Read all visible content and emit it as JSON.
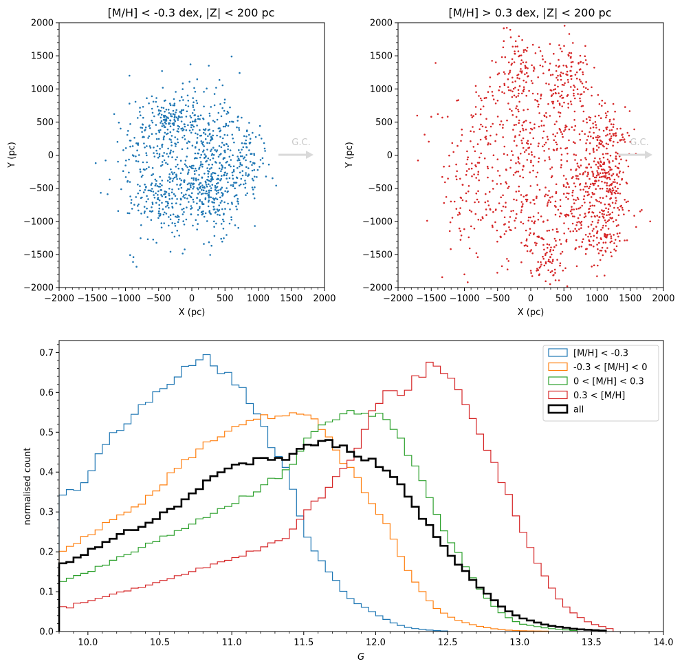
{
  "colors": {
    "metal_poor": "#1f77b4",
    "slightly_poor": "#ff7f0e",
    "slightly_rich": "#2ca02c",
    "metal_rich": "#d62728",
    "all": "#000000",
    "gc_arrow": "#d9d9d9"
  },
  "chart_data": [
    {
      "type": "scatter",
      "title": "[M/H] < -0.3 dex, |Z| < 200 pc",
      "xlabel": "X (pc)",
      "ylabel": "Y (pc)",
      "xlim": [
        -2000,
        2000
      ],
      "ylim": [
        -2000,
        2000
      ],
      "xticks": [
        "−2000",
        "−1500",
        "−1000",
        "−500",
        "0",
        "500",
        "1000",
        "1500",
        "2000"
      ],
      "yticks": [
        "−2000",
        "−1500",
        "−1000",
        "−500",
        "0",
        "500",
        "1000",
        "1500",
        "2000"
      ],
      "annotation": "G.C.",
      "color_key": "metal_poor",
      "clusters": [
        {
          "cx": -250,
          "cy": 550,
          "sx": 230,
          "sy": 220,
          "n": 160
        },
        {
          "cx": 300,
          "cy": 450,
          "sx": 200,
          "sy": 280,
          "n": 110
        },
        {
          "cx": -550,
          "cy": 250,
          "sx": 250,
          "sy": 280,
          "n": 90
        },
        {
          "cx": 50,
          "cy": -300,
          "sx": 300,
          "sy": 260,
          "n": 170
        },
        {
          "cx": 500,
          "cy": -250,
          "sx": 250,
          "sy": 230,
          "n": 130
        },
        {
          "cx": -350,
          "cy": -700,
          "sx": 280,
          "sy": 260,
          "n": 140
        },
        {
          "cx": 350,
          "cy": -800,
          "sx": 250,
          "sy": 250,
          "n": 100
        },
        {
          "cx": -750,
          "cy": -300,
          "sx": 200,
          "sy": 450,
          "n": 70
        },
        {
          "cx": 850,
          "cy": 0,
          "sx": 130,
          "sy": 250,
          "n": 60
        }
      ],
      "extra_points": [
        [
          -1300,
          -80
        ],
        [
          -1170,
          620
        ],
        [
          -940,
          1200
        ],
        [
          -880,
          -1540
        ],
        [
          -930,
          -1510
        ],
        [
          600,
          1490
        ],
        [
          720,
          1240
        ],
        [
          950,
          -1070
        ],
        [
          1050,
          250
        ],
        [
          -20,
          1370
        ],
        [
          -1120,
          200
        ]
      ],
      "seed": 7
    },
    {
      "type": "scatter",
      "title": "[M/H] > 0.3 dex, |Z| < 200 pc",
      "xlabel": "X (pc)",
      "ylabel": "Y (pc)",
      "xlim": [
        -2000,
        2000
      ],
      "ylim": [
        -2000,
        2000
      ],
      "xticks": [
        "−2000",
        "−1500",
        "−1000",
        "−500",
        "0",
        "500",
        "1000",
        "1500",
        "2000"
      ],
      "yticks": [
        "−2000",
        "−1500",
        "−1000",
        "−500",
        "0",
        "500",
        "1000",
        "1500",
        "2000"
      ],
      "annotation": "G.C.",
      "color_key": "metal_rich",
      "clusters": [
        {
          "cx": -250,
          "cy": 1300,
          "sx": 230,
          "sy": 280,
          "n": 110
        },
        {
          "cx": 550,
          "cy": 1150,
          "sx": 220,
          "sy": 300,
          "n": 110
        },
        {
          "cx": 200,
          "cy": 400,
          "sx": 350,
          "sy": 400,
          "n": 150
        },
        {
          "cx": -550,
          "cy": 200,
          "sx": 380,
          "sy": 450,
          "n": 120
        },
        {
          "cx": 1150,
          "cy": 100,
          "sx": 170,
          "sy": 350,
          "n": 180
        },
        {
          "cx": 1150,
          "cy": -550,
          "sx": 180,
          "sy": 350,
          "n": 140
        },
        {
          "cx": 700,
          "cy": -700,
          "sx": 300,
          "sy": 400,
          "n": 160
        },
        {
          "cx": -100,
          "cy": -900,
          "sx": 350,
          "sy": 400,
          "n": 130
        },
        {
          "cx": 1100,
          "cy": -1300,
          "sx": 200,
          "sy": 200,
          "n": 80
        },
        {
          "cx": -900,
          "cy": -600,
          "sx": 250,
          "sy": 400,
          "n": 80
        },
        {
          "cx": 300,
          "cy": -1500,
          "sx": 200,
          "sy": 250,
          "n": 70
        }
      ],
      "extra_points": [
        [
          -1700,
          -80
        ],
        [
          -1500,
          580
        ],
        [
          -1400,
          620
        ],
        [
          -1600,
          310
        ],
        [
          -1000,
          -1800
        ],
        [
          -950,
          -1920
        ],
        [
          1800,
          -1000
        ],
        [
          1650,
          -850
        ],
        [
          550,
          -1980
        ],
        [
          580,
          1830
        ],
        [
          -300,
          1780
        ],
        [
          1500,
          200
        ]
      ],
      "seed": 13
    },
    {
      "type": "step-histogram",
      "xlabel": "G",
      "ylabel": "normalised count",
      "xlim": [
        9.8,
        14.0
      ],
      "ylim": [
        0,
        0.73
      ],
      "xticks": [
        "10.0",
        "10.5",
        "11.0",
        "11.5",
        "12.0",
        "12.5",
        "13.0",
        "13.5",
        "14.0"
      ],
      "yticks": [
        "0.0",
        "0.1",
        "0.2",
        "0.3",
        "0.4",
        "0.5",
        "0.6",
        "0.7"
      ],
      "legend_position": "top-right",
      "series": [
        {
          "name": "[M/H] < -0.3",
          "color_key": "metal_poor",
          "width": 1.2,
          "x": [
            9.8,
            9.85,
            9.9,
            10.0,
            10.05,
            10.15,
            10.3,
            10.5,
            10.65,
            10.7,
            10.8,
            10.9,
            11.0,
            11.1,
            11.2,
            11.3,
            11.35,
            11.4,
            11.45,
            11.5,
            11.55,
            11.6,
            11.7,
            11.8,
            11.9,
            12.0,
            12.1,
            12.2,
            12.3,
            12.4,
            12.5
          ],
          "y": [
            0.335,
            0.36,
            0.345,
            0.38,
            0.43,
            0.48,
            0.54,
            0.6,
            0.66,
            0.675,
            0.695,
            0.665,
            0.64,
            0.6,
            0.53,
            0.44,
            0.43,
            0.38,
            0.33,
            0.26,
            0.22,
            0.19,
            0.14,
            0.09,
            0.065,
            0.045,
            0.025,
            0.012,
            0.006,
            0.003,
            0.001
          ]
        },
        {
          "name": "-0.3 < [M/H] < 0",
          "color_key": "slightly_poor",
          "width": 1.2,
          "x": [
            9.8,
            9.9,
            10.0,
            10.2,
            10.4,
            10.6,
            10.8,
            11.0,
            11.2,
            11.4,
            11.6,
            11.7,
            11.8,
            11.9,
            12.0,
            12.1,
            12.2,
            12.3,
            12.4,
            12.5,
            12.6,
            12.7,
            12.8,
            12.9,
            13.0,
            13.2
          ],
          "y": [
            0.2,
            0.22,
            0.24,
            0.29,
            0.33,
            0.4,
            0.47,
            0.51,
            0.535,
            0.54,
            0.53,
            0.475,
            0.415,
            0.37,
            0.31,
            0.255,
            0.17,
            0.11,
            0.065,
            0.04,
            0.025,
            0.015,
            0.008,
            0.004,
            0.002,
            0.001
          ]
        },
        {
          "name": "0 < [M/H] < 0.3",
          "color_key": "slightly_rich",
          "width": 1.2,
          "x": [
            9.8,
            9.9,
            10.0,
            10.2,
            10.4,
            10.6,
            10.8,
            11.0,
            11.2,
            11.4,
            11.5,
            11.6,
            11.7,
            11.8,
            11.9,
            12.0,
            12.1,
            12.2,
            12.3,
            12.4,
            12.5,
            12.6,
            12.7,
            12.8,
            12.9,
            13.0,
            13.2,
            13.4
          ],
          "y": [
            0.125,
            0.135,
            0.15,
            0.18,
            0.215,
            0.25,
            0.285,
            0.32,
            0.36,
            0.41,
            0.47,
            0.51,
            0.535,
            0.545,
            0.55,
            0.545,
            0.525,
            0.46,
            0.4,
            0.31,
            0.24,
            0.18,
            0.12,
            0.07,
            0.04,
            0.02,
            0.008,
            0.002
          ]
        },
        {
          "name": "0.3 < [M/H]",
          "color_key": "metal_rich",
          "width": 1.2,
          "x": [
            9.8,
            9.85,
            9.9,
            10.0,
            10.2,
            10.4,
            10.6,
            10.8,
            11.0,
            11.2,
            11.4,
            11.5,
            11.6,
            11.7,
            11.8,
            11.9,
            12.0,
            12.1,
            12.2,
            12.3,
            12.4,
            12.5,
            12.6,
            12.7,
            12.8,
            12.9,
            13.0,
            13.1,
            13.2,
            13.3,
            13.4,
            13.5,
            13.65
          ],
          "y": [
            0.075,
            0.05,
            0.07,
            0.075,
            0.095,
            0.115,
            0.135,
            0.16,
            0.18,
            0.21,
            0.24,
            0.3,
            0.33,
            0.37,
            0.42,
            0.48,
            0.57,
            0.6,
            0.605,
            0.64,
            0.67,
            0.64,
            0.58,
            0.51,
            0.44,
            0.36,
            0.27,
            0.19,
            0.12,
            0.07,
            0.04,
            0.02,
            0.005
          ]
        },
        {
          "name": "all",
          "color_key": "all",
          "width": 2.6,
          "x": [
            9.8,
            9.9,
            10.0,
            10.2,
            10.4,
            10.6,
            10.8,
            11.0,
            11.2,
            11.4,
            11.5,
            11.55,
            11.6,
            11.7,
            11.8,
            11.9,
            12.0,
            12.1,
            12.2,
            12.3,
            12.4,
            12.5,
            12.6,
            12.7,
            12.8,
            12.9,
            13.0,
            13.2,
            13.4,
            13.6
          ],
          "y": [
            0.17,
            0.18,
            0.2,
            0.24,
            0.27,
            0.31,
            0.37,
            0.41,
            0.43,
            0.44,
            0.455,
            0.47,
            0.48,
            0.47,
            0.455,
            0.44,
            0.425,
            0.4,
            0.36,
            0.3,
            0.25,
            0.2,
            0.16,
            0.12,
            0.085,
            0.055,
            0.035,
            0.015,
            0.006,
            0.002
          ]
        }
      ]
    }
  ]
}
